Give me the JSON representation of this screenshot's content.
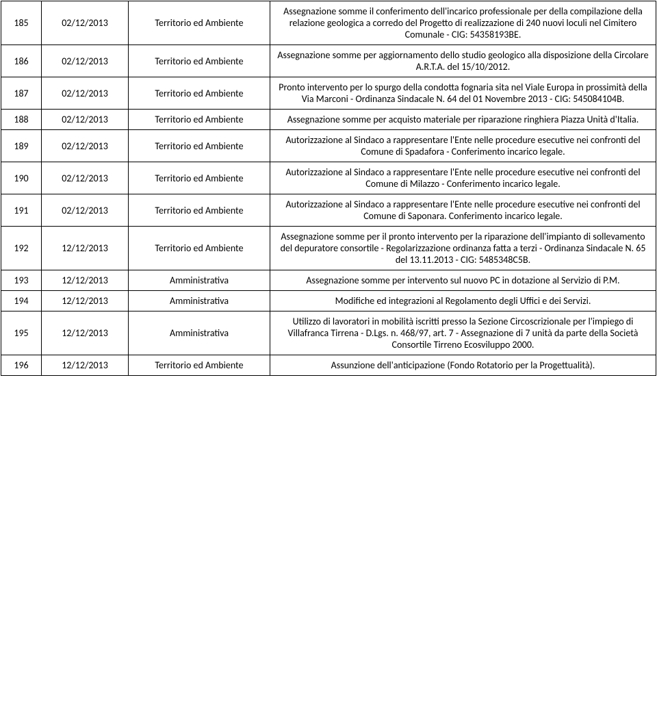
{
  "rows": [
    {
      "num": "185",
      "date": "02/12/2013",
      "area": "Territorio ed Ambiente",
      "desc": "Assegnazione somme il conferimento dell'incarico professionale per della compilazione della relazione geologica a corredo del Progetto di realizzazione di 240 nuovi loculi nel Cimitero Comunale - CIG: 54358193BE."
    },
    {
      "num": "186",
      "date": "02/12/2013",
      "area": "Territorio ed Ambiente",
      "desc": "Assegnazione somme per aggiornamento dello studio geologico alla disposizione della Circolare A.R.T.A. del 15/10/2012."
    },
    {
      "num": "187",
      "date": "02/12/2013",
      "area": "Territorio ed Ambiente",
      "desc": "Pronto intervento per lo spurgo della condotta fognaria sita nel Viale Europa in prossimità della Via Marconi - Ordinanza Sindacale N. 64 del 01 Novembre 2013 - CIG: 545084104B."
    },
    {
      "num": "188",
      "date": "02/12/2013",
      "area": "Territorio ed Ambiente",
      "desc": "Assegnazione somme per acquisto materiale per riparazione ringhiera Piazza Unità d'Italia."
    },
    {
      "num": "189",
      "date": "02/12/2013",
      "area": "Territorio ed Ambiente",
      "desc": "Autorizzazione al Sindaco a rappresentare l'Ente nelle procedure esecutive nei confronti del Comune di Spadafora - Conferimento incarico legale."
    },
    {
      "num": "190",
      "date": "02/12/2013",
      "area": "Territorio ed Ambiente",
      "desc": "Autorizzazione al Sindaco a rappresentare l'Ente nelle procedure esecutive nei confronti del Comune di Milazzo - Conferimento incarico legale."
    },
    {
      "num": "191",
      "date": "02/12/2013",
      "area": "Territorio ed Ambiente",
      "desc": "Autorizzazione al Sindaco a rappresentare l'Ente nelle procedure esecutive nei confronti del Comune di Saponara. Conferimento incarico legale."
    },
    {
      "num": "192",
      "date": "12/12/2013",
      "area": "Territorio ed Ambiente",
      "desc": "Assegnazione somme per il pronto intervento per la riparazione dell'impianto di sollevamento del depuratore consortile - Regolarizzazione ordinanza fatta a terzi - Ordinanza Sindacale N. 65 del 13.11.2013 - CIG: 5485348C5B."
    },
    {
      "num": "193",
      "date": "12/12/2013",
      "area": "Amministrativa",
      "desc": "Assegnazione somme per intervento sul nuovo PC in dotazione al Servizio di P.M."
    },
    {
      "num": "194",
      "date": "12/12/2013",
      "area": "Amministrativa",
      "desc": "Modifiche ed integrazioni al Regolamento degli Uffici e dei Servizi."
    },
    {
      "num": "195",
      "date": "12/12/2013",
      "area": "Amministrativa",
      "desc": "Utilizzo di lavoratori in mobilità iscritti presso la Sezione Circoscrizionale per l'impiego di Villafranca Tirrena - D.Lgs. n. 468/97, art. 7 - Assegnazione di 7 unità da parte della Società Consortile Tirreno Ecosviluppo 2000."
    },
    {
      "num": "196",
      "date": "12/12/2013",
      "area": "Territorio ed Ambiente",
      "desc": "Assunzione dell'anticipazione (Fondo Rotatorio per la Progettualità)."
    }
  ]
}
